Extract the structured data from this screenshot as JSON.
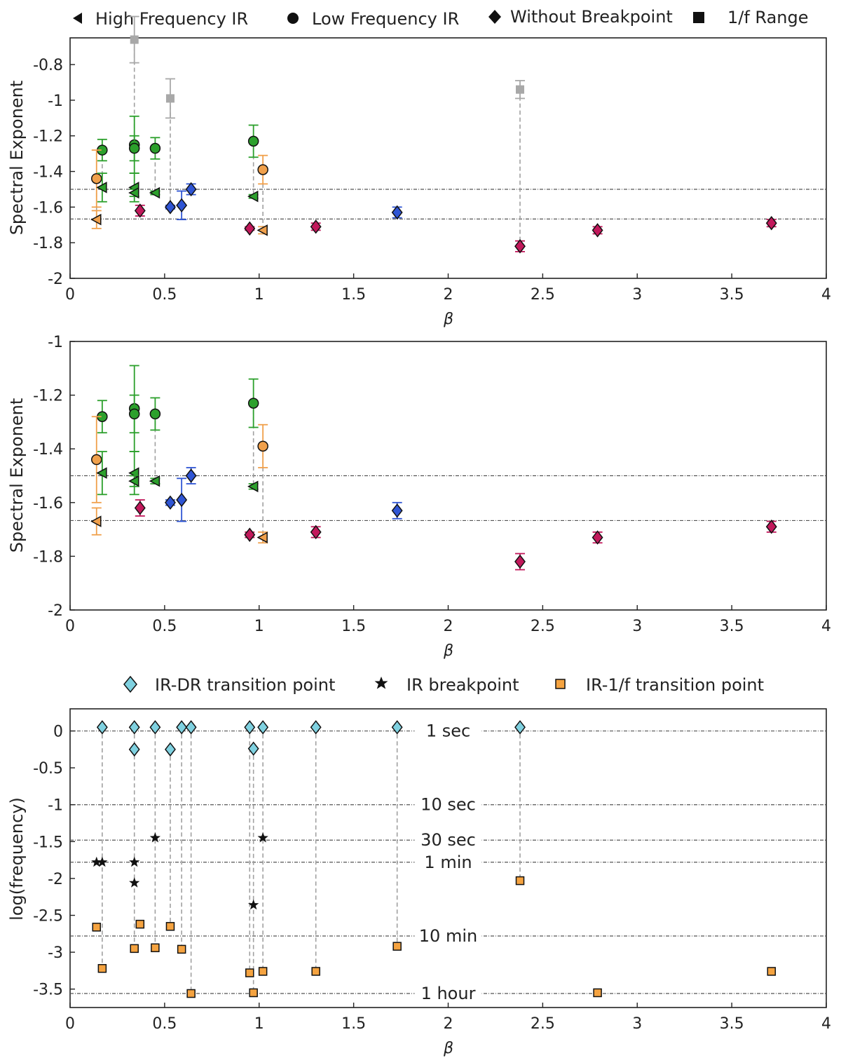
{
  "colors": {
    "green": "#2ca02c",
    "orange": "#f0a04b",
    "blue": "#2f55d4",
    "magenta": "#c2185b",
    "gray": "#a8a8a8",
    "cyan": "#7fd1e0",
    "black": "#111111",
    "sqorange": "#f5a340"
  },
  "chart_data": [
    {
      "type": "scatter",
      "title": "",
      "xlabel": "β",
      "ylabel": "Spectral Exponent",
      "xlim": [
        0,
        4
      ],
      "ylim": [
        -2,
        -0.65
      ],
      "xticks": [
        0,
        0.5,
        1,
        1.5,
        2,
        2.5,
        3,
        3.5,
        4
      ],
      "xtick_labels": [
        "0",
        "0.5",
        "1",
        "1.5",
        "2",
        "2.5",
        "3",
        "3.5",
        "4"
      ],
      "yticks": [
        -2,
        -1.8,
        -1.6,
        -1.4,
        -1.2,
        -1,
        -0.8
      ],
      "ytick_labels": [
        "-2",
        "-1.8",
        "-1.6",
        "-1.4",
        "-1.2",
        "-1",
        "-0.8"
      ],
      "legend": [
        "High Frequency IR",
        "Low Frequency IR",
        "Without Breakpoint",
        "1/f Range"
      ],
      "legend_position": "top",
      "hlines": [
        -1.5,
        -1.667
      ],
      "connectors": [
        {
          "x": 0.34,
          "y1": -0.66,
          "y2": -1.51
        },
        {
          "x": 0.53,
          "y1": -0.99,
          "y2": -1.6
        },
        {
          "x": 2.38,
          "y1": -0.94,
          "y2": -1.82
        },
        {
          "x": 0.45,
          "y1": -1.27,
          "y2": -1.52
        },
        {
          "x": 0.97,
          "y1": -1.23,
          "y2": -1.54
        },
        {
          "x": 1.02,
          "y1": -1.39,
          "y2": -1.73
        },
        {
          "x": 0.14,
          "y1": -1.44,
          "y2": -1.67
        },
        {
          "x": 0.17,
          "y1": -1.28,
          "y2": -1.49
        }
      ],
      "series": [
        {
          "name": "1/f Range",
          "marker": "square",
          "color": "gray",
          "points": [
            {
              "x": 0.34,
              "y": -0.66,
              "err": 0.13
            },
            {
              "x": 0.53,
              "y": -0.99,
              "err": 0.11
            },
            {
              "x": 2.38,
              "y": -0.94,
              "err": 0.05
            }
          ]
        },
        {
          "name": "Low Frequency IR (green)",
          "marker": "circle",
          "color": "green",
          "points": [
            {
              "x": 0.17,
              "y": -1.28,
              "err": 0.06
            },
            {
              "x": 0.34,
              "y": -1.25,
              "err": 0.16
            },
            {
              "x": 0.34,
              "y": -1.27,
              "err": 0.07
            },
            {
              "x": 0.45,
              "y": -1.27,
              "err": 0.06
            },
            {
              "x": 0.97,
              "y": -1.23,
              "err": 0.09
            }
          ]
        },
        {
          "name": "Low Frequency IR (orange)",
          "marker": "circle",
          "color": "orange",
          "points": [
            {
              "x": 0.14,
              "y": -1.44,
              "err": 0.16
            },
            {
              "x": 1.02,
              "y": -1.39,
              "err": 0.08
            }
          ]
        },
        {
          "name": "High Frequency IR (green)",
          "marker": "triangle-left",
          "color": "green",
          "points": [
            {
              "x": 0.17,
              "y": -1.49,
              "err": 0.08
            },
            {
              "x": 0.34,
              "y": -1.49,
              "err": 0.08
            },
            {
              "x": 0.34,
              "y": -1.52,
              "err": 0.02
            },
            {
              "x": 0.45,
              "y": -1.52,
              "err": 0.01
            },
            {
              "x": 0.97,
              "y": -1.54,
              "err": 0.01
            }
          ]
        },
        {
          "name": "High Frequency IR (orange)",
          "marker": "triangle-left",
          "color": "orange",
          "points": [
            {
              "x": 0.14,
              "y": -1.67,
              "err": 0.05
            },
            {
              "x": 1.02,
              "y": -1.73,
              "err": 0.02
            }
          ]
        },
        {
          "name": "Without Breakpoint (blue)",
          "marker": "diamond",
          "color": "blue",
          "points": [
            {
              "x": 0.53,
              "y": -1.6,
              "err": 0.01
            },
            {
              "x": 0.59,
              "y": -1.59,
              "err": 0.08
            },
            {
              "x": 0.64,
              "y": -1.5,
              "err": 0.03
            },
            {
              "x": 1.73,
              "y": -1.63,
              "err": 0.03
            }
          ]
        },
        {
          "name": "Without Breakpoint (magenta)",
          "marker": "diamond",
          "color": "magenta",
          "points": [
            {
              "x": 0.37,
              "y": -1.62,
              "err": 0.03
            },
            {
              "x": 0.95,
              "y": -1.72,
              "err": 0.01
            },
            {
              "x": 1.3,
              "y": -1.71,
              "err": 0.02
            },
            {
              "x": 2.38,
              "y": -1.82,
              "err": 0.03
            },
            {
              "x": 2.79,
              "y": -1.73,
              "err": 0.02
            },
            {
              "x": 3.71,
              "y": -1.69,
              "err": 0.02
            }
          ]
        }
      ]
    },
    {
      "type": "scatter",
      "title": "",
      "xlabel": "β",
      "ylabel": "Spectral Exponent",
      "xlim": [
        0,
        4
      ],
      "ylim": [
        -2,
        -1
      ],
      "xticks": [
        0,
        0.5,
        1,
        1.5,
        2,
        2.5,
        3,
        3.5,
        4
      ],
      "xtick_labels": [
        "0",
        "0.5",
        "1",
        "1.5",
        "2",
        "2.5",
        "3",
        "3.5",
        "4"
      ],
      "yticks": [
        -2,
        -1.8,
        -1.6,
        -1.4,
        -1.2,
        -1
      ],
      "ytick_labels": [
        "-2",
        "-1.8",
        "-1.6",
        "-1.4",
        "-1.2",
        "-1"
      ],
      "hlines": [
        -1.5,
        -1.667
      ],
      "connectors": [
        {
          "x": 0.45,
          "y1": -1.27,
          "y2": -1.52
        },
        {
          "x": 0.97,
          "y1": -1.23,
          "y2": -1.54
        },
        {
          "x": 1.02,
          "y1": -1.39,
          "y2": -1.73
        }
      ],
      "series": [
        {
          "name": "Low Frequency IR (green)",
          "marker": "circle",
          "color": "green",
          "points": [
            {
              "x": 0.17,
              "y": -1.28,
              "err": 0.06
            },
            {
              "x": 0.34,
              "y": -1.25,
              "err": 0.16
            },
            {
              "x": 0.34,
              "y": -1.27,
              "err": 0.07
            },
            {
              "x": 0.45,
              "y": -1.27,
              "err": 0.06
            },
            {
              "x": 0.97,
              "y": -1.23,
              "err": 0.09
            }
          ]
        },
        {
          "name": "Low Frequency IR (orange)",
          "marker": "circle",
          "color": "orange",
          "points": [
            {
              "x": 0.14,
              "y": -1.44,
              "err": 0.16
            },
            {
              "x": 1.02,
              "y": -1.39,
              "err": 0.08
            }
          ]
        },
        {
          "name": "High Frequency IR (green)",
          "marker": "triangle-left",
          "color": "green",
          "points": [
            {
              "x": 0.17,
              "y": -1.49,
              "err": 0.08
            },
            {
              "x": 0.34,
              "y": -1.49,
              "err": 0.08
            },
            {
              "x": 0.34,
              "y": -1.52,
              "err": 0.02
            },
            {
              "x": 0.45,
              "y": -1.52,
              "err": 0.01
            },
            {
              "x": 0.97,
              "y": -1.54,
              "err": 0.01
            }
          ]
        },
        {
          "name": "High Frequency IR (orange)",
          "marker": "triangle-left",
          "color": "orange",
          "points": [
            {
              "x": 0.14,
              "y": -1.67,
              "err": 0.05
            },
            {
              "x": 1.02,
              "y": -1.73,
              "err": 0.02
            }
          ]
        },
        {
          "name": "Without Breakpoint (blue)",
          "marker": "diamond",
          "color": "blue",
          "points": [
            {
              "x": 0.53,
              "y": -1.6,
              "err": 0.01
            },
            {
              "x": 0.59,
              "y": -1.59,
              "err": 0.08
            },
            {
              "x": 0.64,
              "y": -1.5,
              "err": 0.03
            },
            {
              "x": 1.73,
              "y": -1.63,
              "err": 0.03
            }
          ]
        },
        {
          "name": "Without Breakpoint (magenta)",
          "marker": "diamond",
          "color": "magenta",
          "points": [
            {
              "x": 0.37,
              "y": -1.62,
              "err": 0.03
            },
            {
              "x": 0.95,
              "y": -1.72,
              "err": 0.01
            },
            {
              "x": 1.3,
              "y": -1.71,
              "err": 0.02
            },
            {
              "x": 2.38,
              "y": -1.82,
              "err": 0.03
            },
            {
              "x": 2.79,
              "y": -1.73,
              "err": 0.02
            },
            {
              "x": 3.71,
              "y": -1.69,
              "err": 0.02
            }
          ]
        }
      ]
    },
    {
      "type": "scatter",
      "title": "",
      "xlabel": "β",
      "ylabel": "log(frequency)",
      "xlim": [
        0,
        4
      ],
      "ylim": [
        -3.75,
        0.3
      ],
      "xticks": [
        0,
        0.5,
        1,
        1.5,
        2,
        2.5,
        3,
        3.5,
        4
      ],
      "xtick_labels": [
        "0",
        "0.5",
        "1",
        "1.5",
        "2",
        "2.5",
        "3",
        "3.5",
        "4"
      ],
      "yticks": [
        -3.5,
        -3,
        -2.5,
        -2,
        -1.5,
        -1,
        -0.5,
        0
      ],
      "ytick_labels": [
        "-3.5",
        "-3",
        "-2.5",
        "-2",
        "-1.5",
        "-1",
        "-0.5",
        "0"
      ],
      "legend": [
        "IR-DR transition point",
        "IR breakpoint",
        "IR-1/f transition point"
      ],
      "legend_position": "top",
      "reference_lines": [
        {
          "value": 0,
          "label": "1 sec"
        },
        {
          "value": -1,
          "label": "10 sec"
        },
        {
          "value": -1.48,
          "label": "30 sec"
        },
        {
          "value": -1.78,
          "label": "1 min"
        },
        {
          "value": -2.78,
          "label": "10 min"
        },
        {
          "value": -3.56,
          "label": "1 hour"
        }
      ],
      "connectors": [
        {
          "x": 0.17,
          "y1": 0.05,
          "y2": -3.22
        },
        {
          "x": 0.34,
          "y1": 0.05,
          "y2": -2.95
        },
        {
          "x": 0.45,
          "y1": 0.05,
          "y2": -2.94
        },
        {
          "x": 0.53,
          "y1": -0.25,
          "y2": -2.65
        },
        {
          "x": 0.59,
          "y1": 0.05,
          "y2": -2.96
        },
        {
          "x": 0.64,
          "y1": 0.05,
          "y2": -3.56
        },
        {
          "x": 0.95,
          "y1": 0.05,
          "y2": -3.28
        },
        {
          "x": 0.97,
          "y1": -0.24,
          "y2": -3.55
        },
        {
          "x": 1.02,
          "y1": 0.05,
          "y2": -3.26
        },
        {
          "x": 1.3,
          "y1": 0.05,
          "y2": -3.26
        },
        {
          "x": 1.73,
          "y1": 0.05,
          "y2": -2.92
        },
        {
          "x": 2.38,
          "y1": 0.05,
          "y2": -2.03
        }
      ],
      "series": [
        {
          "name": "IR-DR transition point",
          "marker": "diamond",
          "color": "cyan",
          "points": [
            {
              "x": 0.17,
              "y": 0.05
            },
            {
              "x": 0.34,
              "y": 0.05
            },
            {
              "x": 0.34,
              "y": -0.25
            },
            {
              "x": 0.45,
              "y": 0.05
            },
            {
              "x": 0.53,
              "y": -0.25
            },
            {
              "x": 0.59,
              "y": 0.05
            },
            {
              "x": 0.64,
              "y": 0.05
            },
            {
              "x": 0.95,
              "y": 0.05
            },
            {
              "x": 0.97,
              "y": -0.24
            },
            {
              "x": 1.02,
              "y": 0.05
            },
            {
              "x": 1.3,
              "y": 0.05
            },
            {
              "x": 1.73,
              "y": 0.05
            },
            {
              "x": 2.38,
              "y": 0.05
            }
          ]
        },
        {
          "name": "IR breakpoint",
          "marker": "star",
          "color": "black",
          "points": [
            {
              "x": 0.14,
              "y": -1.78
            },
            {
              "x": 0.17,
              "y": -1.78
            },
            {
              "x": 0.34,
              "y": -1.78
            },
            {
              "x": 0.34,
              "y": -2.06
            },
            {
              "x": 0.45,
              "y": -1.45
            },
            {
              "x": 0.97,
              "y": -2.36
            },
            {
              "x": 1.02,
              "y": -1.45
            }
          ]
        },
        {
          "name": "IR-1/f transition point",
          "marker": "square",
          "color": "sqorange",
          "points": [
            {
              "x": 0.14,
              "y": -2.66
            },
            {
              "x": 0.17,
              "y": -3.22
            },
            {
              "x": 0.34,
              "y": -2.95
            },
            {
              "x": 0.37,
              "y": -2.62
            },
            {
              "x": 0.45,
              "y": -2.94
            },
            {
              "x": 0.53,
              "y": -2.65
            },
            {
              "x": 0.59,
              "y": -2.96
            },
            {
              "x": 0.64,
              "y": -3.56
            },
            {
              "x": 0.95,
              "y": -3.28
            },
            {
              "x": 0.97,
              "y": -3.55
            },
            {
              "x": 1.02,
              "y": -3.26
            },
            {
              "x": 1.3,
              "y": -3.26
            },
            {
              "x": 1.73,
              "y": -2.92
            },
            {
              "x": 2.38,
              "y": -2.03
            },
            {
              "x": 2.79,
              "y": -3.55
            },
            {
              "x": 3.71,
              "y": -3.26
            }
          ]
        }
      ]
    }
  ]
}
